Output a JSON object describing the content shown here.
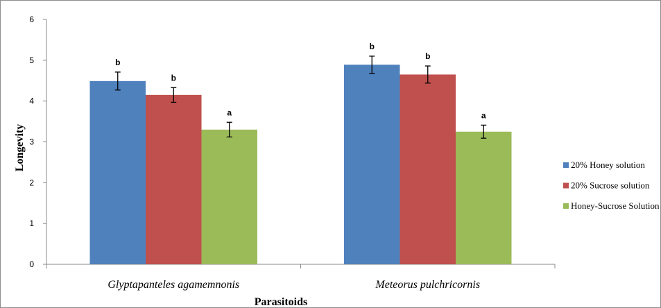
{
  "chart_data": {
    "type": "bar",
    "title": "",
    "xlabel": "Parasitoids",
    "ylabel": "Longevity",
    "ylim": [
      0,
      6
    ],
    "yticks": [
      "0",
      "1",
      "2",
      "3",
      "4",
      "5",
      "6"
    ],
    "categories": [
      "Glyptapanteles agamemnonis",
      "Meteorus pulchricornis"
    ],
    "series": [
      {
        "name": "20% Honey solution",
        "color": "#4f81bd",
        "values": [
          4.49,
          4.89
        ],
        "errors": [
          0.22,
          0.21
        ],
        "labels": [
          "b",
          "b"
        ]
      },
      {
        "name": "20% Sucrose solution",
        "color": "#c0504d",
        "values": [
          4.15,
          4.65
        ],
        "errors": [
          0.18,
          0.21
        ],
        "labels": [
          "b",
          "b"
        ]
      },
      {
        "name": "Honey-Sucrose Solution",
        "color": "#9bbb59",
        "values": [
          3.3,
          3.25
        ],
        "errors": [
          0.18,
          0.16
        ],
        "labels": [
          "a",
          "a"
        ]
      }
    ],
    "grid": false,
    "legend_position": "right"
  }
}
